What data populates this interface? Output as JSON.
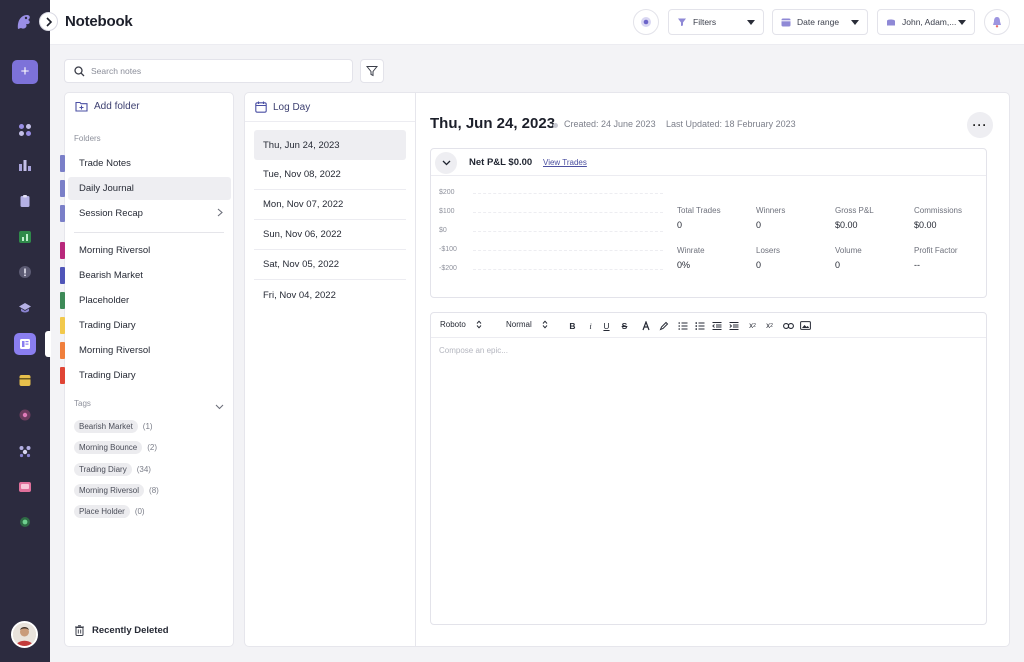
{
  "app": {
    "page_title": "Notebook"
  },
  "topbar": {
    "filters_label": "Filters",
    "date_range_label": "Date range",
    "accounts_label": "John, Adam,..."
  },
  "search": {
    "placeholder": "Search notes"
  },
  "folders_panel": {
    "add_folder_label": "Add folder",
    "folders_header": "Folders",
    "folders": [
      {
        "label": "Trade Notes",
        "color": "#7a7fc8"
      },
      {
        "label": "Daily Journal",
        "color": "#7a7fc8"
      },
      {
        "label": "Session Recap",
        "color": "#7a7fc8"
      },
      {
        "label": "Morning Riversol",
        "color": "#b8287b"
      },
      {
        "label": "Bearish Market",
        "color": "#4f55b8"
      },
      {
        "label": "Placeholder",
        "color": "#3d8a57"
      },
      {
        "label": "Trading Diary",
        "color": "#f2c94c"
      },
      {
        "label": "Morning Riversol",
        "color": "#f07f3c"
      },
      {
        "label": "Trading Diary",
        "color": "#e04535"
      }
    ],
    "tags_header": "Tags",
    "tags": [
      {
        "label": "Bearish Market",
        "count": "(1)"
      },
      {
        "label": "Morning Bounce",
        "count": "(2)"
      },
      {
        "label": "Trading Diary",
        "count": "(34)"
      },
      {
        "label": "Morning Riversol",
        "count": "(8)"
      },
      {
        "label": "Place Holder",
        "count": "(0)"
      }
    ],
    "recently_deleted_label": "Recently Deleted"
  },
  "days": {
    "log_day_label": "Log Day",
    "items": [
      "Thu, Jun 24, 2023",
      "Tue, Nov 08, 2022",
      "Mon, Nov 07, 2022",
      "Sun, Nov 06, 2022",
      "Sat, Nov 05, 2022",
      "Fri, Nov 04, 2022"
    ]
  },
  "detail": {
    "title": "Thu, Jun 24, 2023",
    "created": "Created: 24 June 2023",
    "updated": "Last Updated: 18 February 2023",
    "more_label": "···",
    "net_pnl": "Net P&L $0.00",
    "view_trades": "View Trades",
    "chart_ticks": [
      "$200",
      "$100",
      "$0",
      "-$100",
      "-$200"
    ],
    "stats": [
      {
        "k": "Total Trades",
        "v": "0"
      },
      {
        "k": "Winners",
        "v": "0"
      },
      {
        "k": "Gross P&L",
        "v": "$0.00"
      },
      {
        "k": "Commissions",
        "v": "$0.00"
      },
      {
        "k": "Winrate",
        "v": "0%"
      },
      {
        "k": "Losers",
        "v": "0"
      },
      {
        "k": "Volume",
        "v": "0"
      },
      {
        "k": "Profit Factor",
        "v": "--"
      }
    ]
  },
  "editor": {
    "font_value": "Roboto",
    "size_value": "Normal",
    "placeholder": "Compose an epic..."
  },
  "colors": {
    "accent": "#7d72d9",
    "rail_bg": "#2c2b3f"
  }
}
